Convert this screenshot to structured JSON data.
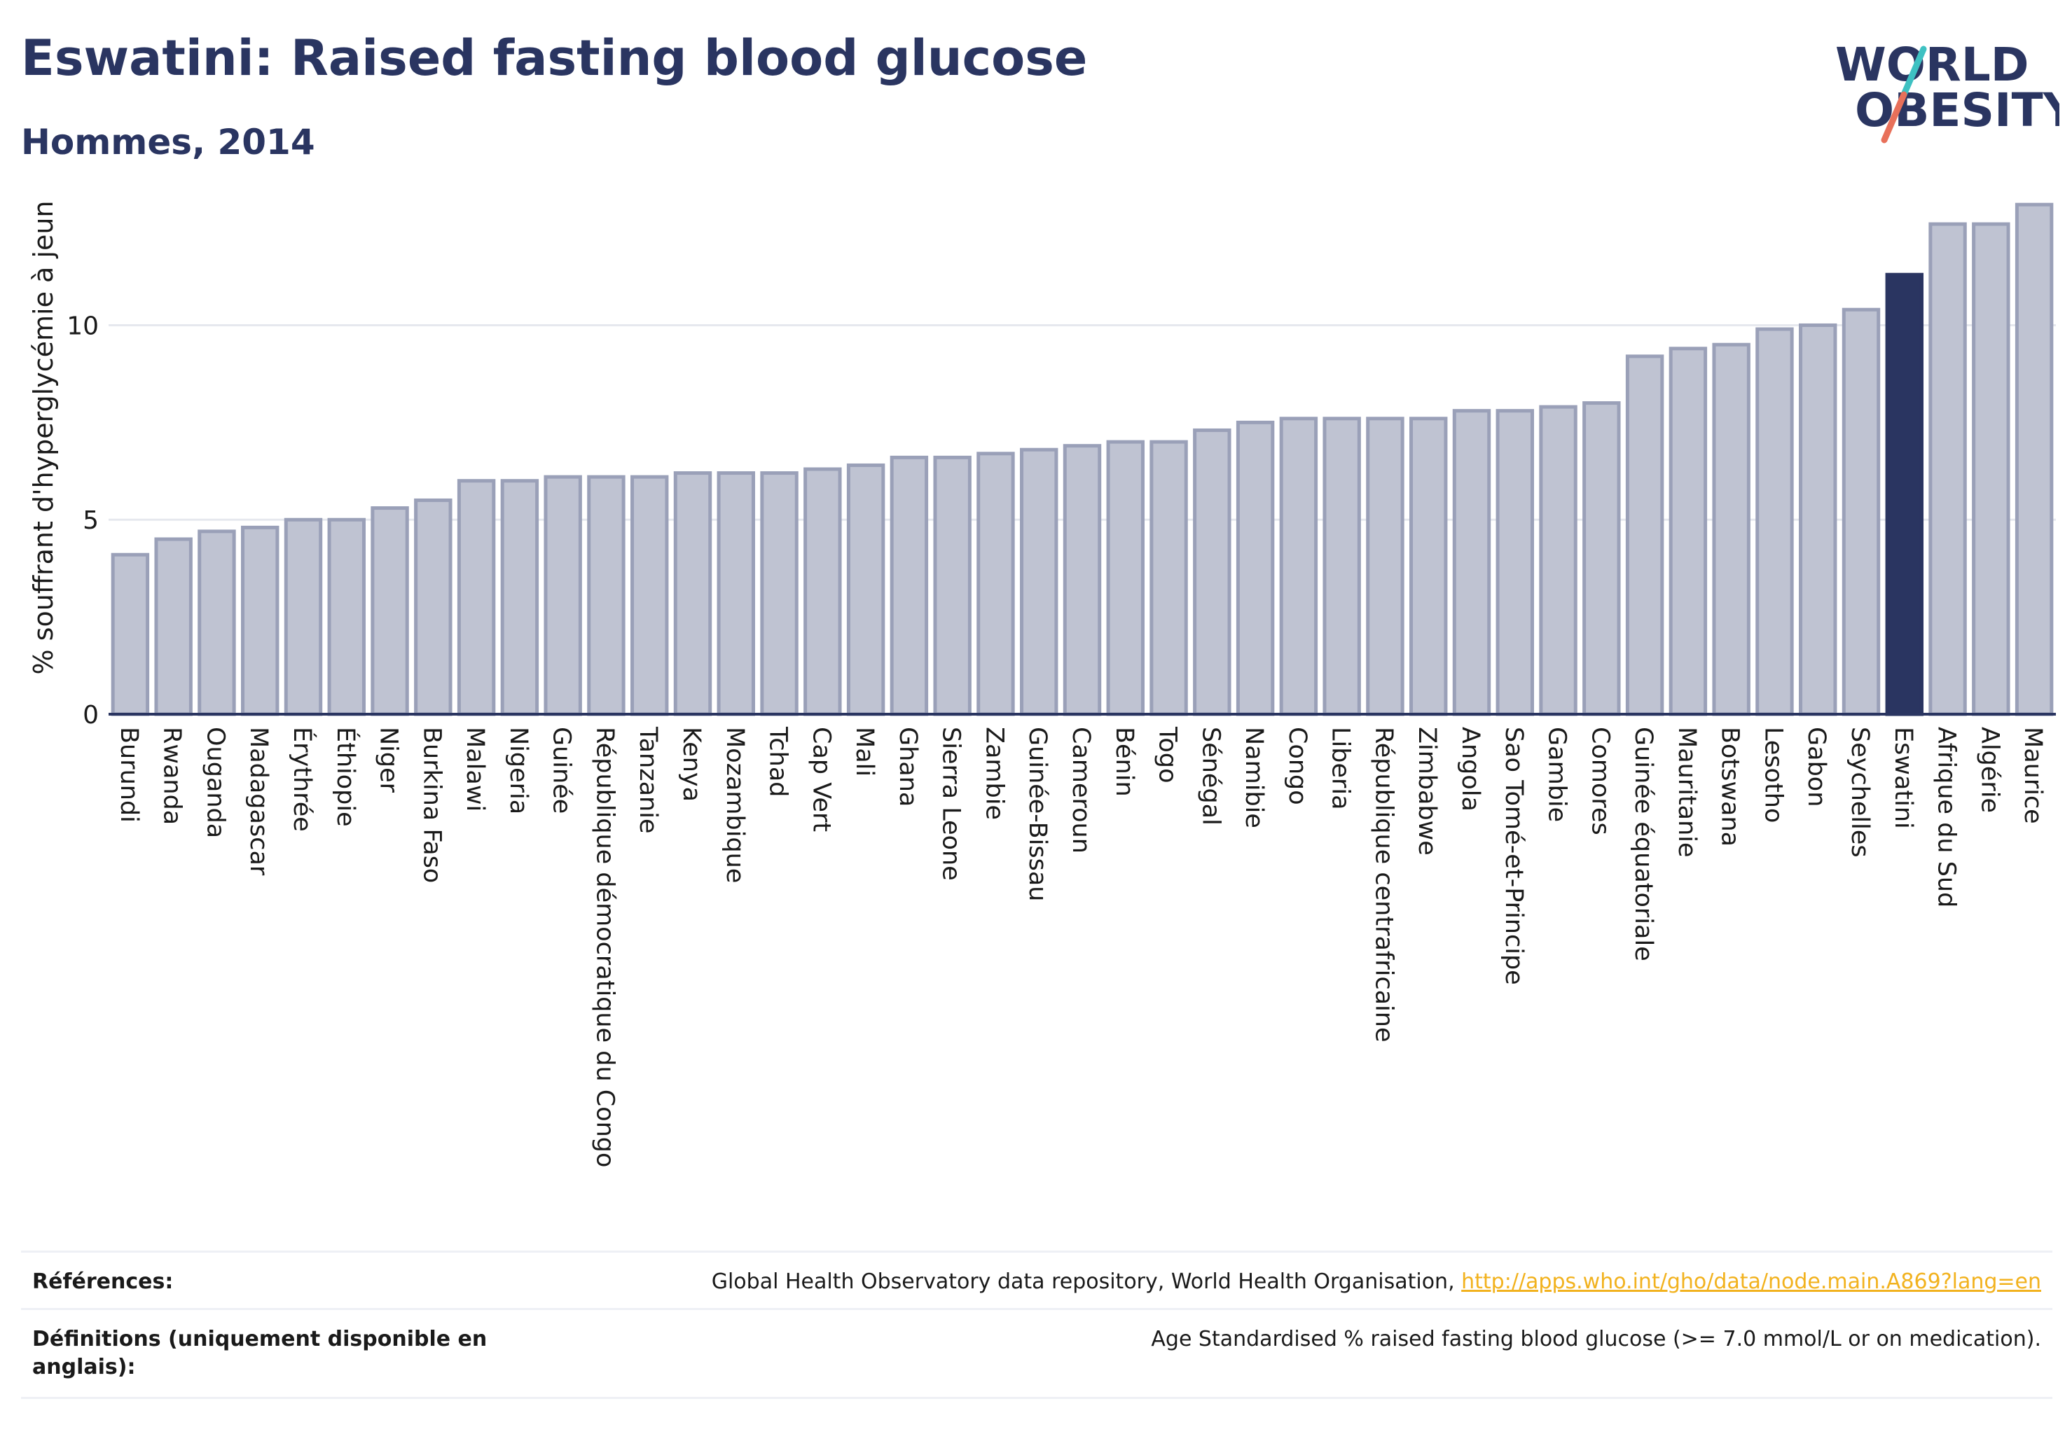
{
  "header": {
    "title": "Eswatini: Raised fasting blood glucose",
    "subtitle": "Hommes, 2014"
  },
  "logo": {
    "line1": "WORLD",
    "line2": "OBESITY",
    "brand_color": "#2a3561",
    "accent_teal": "#3ec1c2",
    "accent_coral": "#e8705a"
  },
  "chart_data": {
    "type": "bar",
    "ylabel": "% souffrant d'hyperglycémie à jeun",
    "xlabel": "",
    "ylim": [
      0,
      13.5
    ],
    "yticks": [
      0,
      5,
      10
    ],
    "grid": true,
    "highlight": "Eswatini",
    "colors": {
      "bar": "#bfc3d2",
      "bar_stroke": "#9aa0b8",
      "highlight": "#2a3561"
    },
    "categories": [
      "Burundi",
      "Rwanda",
      "Ouganda",
      "Madagascar",
      "Érythrée",
      "Éthiopie",
      "Niger",
      "Burkina Faso",
      "Malawi",
      "Nigeria",
      "Guinée",
      "République démocratique du Congo",
      "Tanzanie",
      "Kenya",
      "Mozambique",
      "Tchad",
      "Cap Vert",
      "Mali",
      "Ghana",
      "Sierra Leone",
      "Zambie",
      "Guinée-Bissau",
      "Cameroun",
      "Bénin",
      "Togo",
      "Sénégal",
      "Namibie",
      "Congo",
      "Liberia",
      "République centrafricaine",
      "Zimbabwe",
      "Angola",
      "Sao Tomé-et-Principe",
      "Gambie",
      "Comores",
      "Guinée équatoriale",
      "Mauritanie",
      "Botswana",
      "Lesotho",
      "Gabon",
      "Seychelles",
      "Eswatini",
      "Afrique du Sud",
      "Algérie",
      "Maurice"
    ],
    "values": [
      4.1,
      4.5,
      4.7,
      4.8,
      5.0,
      5.0,
      5.3,
      5.5,
      6.0,
      6.0,
      6.1,
      6.1,
      6.1,
      6.2,
      6.2,
      6.2,
      6.3,
      6.4,
      6.6,
      6.6,
      6.7,
      6.8,
      6.9,
      7.0,
      7.0,
      7.3,
      7.5,
      7.6,
      7.6,
      7.6,
      7.6,
      7.8,
      7.8,
      7.9,
      8.0,
      9.2,
      9.4,
      9.5,
      9.9,
      10.0,
      10.4,
      11.3,
      12.6,
      12.6,
      13.1
    ]
  },
  "footer": {
    "references_label": "Références:",
    "references_text": "Global Health Observatory data repository, World Health Organisation, ",
    "references_link": "http://apps.who.int/gho/data/node.main.A869?lang=en",
    "definitions_label": "Définitions (uniquement disponible en anglais):",
    "definitions_text": "Age Standardised % raised fasting blood glucose (>= 7.0 mmol/L or on medication)."
  }
}
